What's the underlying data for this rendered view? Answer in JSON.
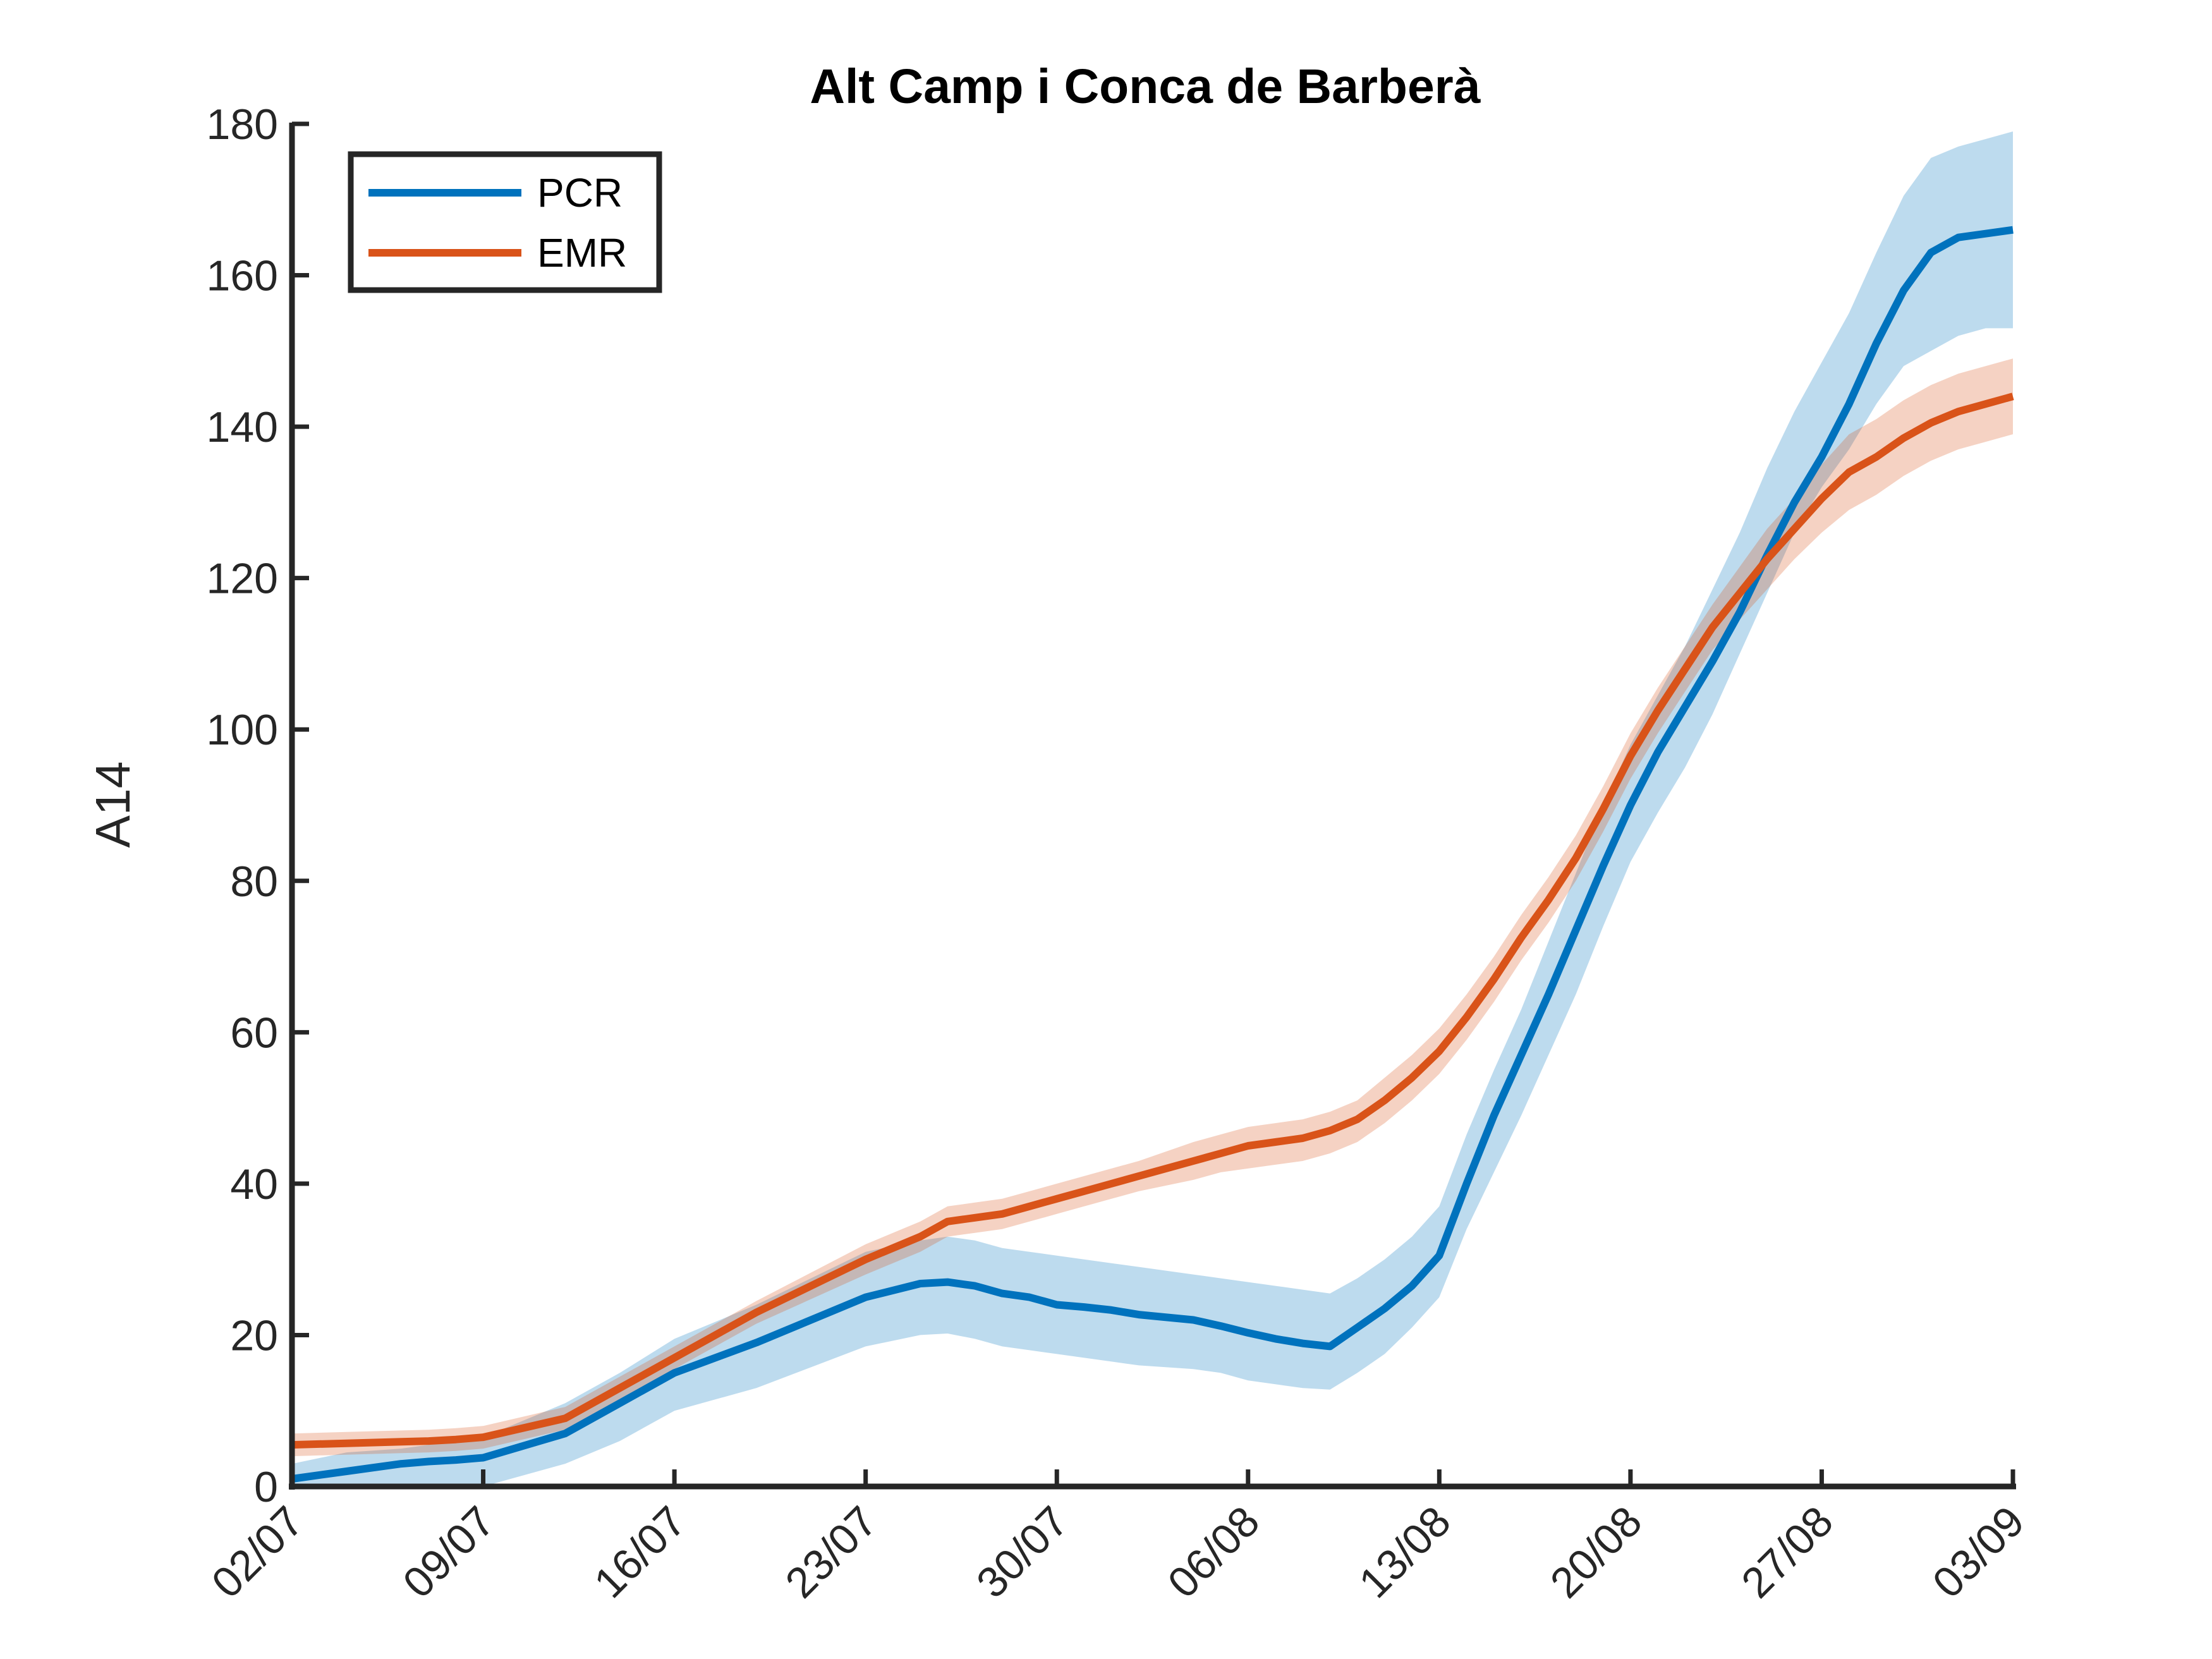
{
  "chart_data": {
    "type": "line",
    "title": "Alt Camp i Conca de Barberà",
    "xlabel": "",
    "ylabel": "A14",
    "x_ticks": [
      "02/07",
      "09/07",
      "16/07",
      "23/07",
      "30/07",
      "06/08",
      "13/08",
      "20/08",
      "27/08",
      "03/09"
    ],
    "x_range_days": [
      0,
      63
    ],
    "ylim": [
      0,
      180
    ],
    "y_ticks": [
      0,
      20,
      40,
      60,
      80,
      100,
      120,
      140,
      160,
      180
    ],
    "grid": false,
    "legend": "top-left",
    "colors": {
      "PCR": "#0072BD",
      "EMR": "#D95319"
    },
    "series": [
      {
        "name": "PCR",
        "x": [
          0,
          2,
          4,
          5,
          6,
          7,
          10,
          12,
          14,
          17,
          21,
          23,
          24,
          25,
          26,
          27,
          28,
          29,
          30,
          31,
          33,
          34,
          35,
          36,
          37,
          38,
          39,
          40,
          41,
          42,
          43,
          44,
          45,
          46,
          47,
          48,
          49,
          50,
          51,
          52,
          53,
          54,
          55,
          56,
          57,
          58,
          59,
          60,
          61,
          62,
          63
        ],
        "values": [
          1,
          2,
          3,
          3.3,
          3.5,
          3.8,
          7,
          11,
          15,
          19,
          25,
          26.8,
          27,
          26.5,
          25.5,
          25,
          24,
          23.7,
          23.3,
          22.7,
          22,
          21.2,
          20.3,
          19.5,
          18.9,
          18.5,
          21,
          23.5,
          26.5,
          30.5,
          40,
          49,
          57,
          65,
          73.5,
          82,
          90,
          97,
          103,
          109,
          115.5,
          123,
          130,
          136,
          143,
          151,
          158,
          163,
          165,
          165.5,
          166
        ],
        "lower": [
          0,
          0,
          0,
          0,
          0,
          0,
          3,
          6,
          10,
          13,
          18.5,
          20,
          20.2,
          19.5,
          18.5,
          18,
          17.5,
          17,
          16.5,
          16,
          15.5,
          15,
          14,
          13.5,
          13,
          12.8,
          15,
          17.5,
          21,
          25,
          34,
          41.5,
          49,
          57,
          65,
          74,
          82.5,
          89,
          95,
          102,
          110,
          118,
          126,
          132,
          137,
          143,
          148,
          150,
          152,
          153,
          153
        ],
        "upper": [
          3,
          4.5,
          5,
          5.5,
          6,
          6.5,
          11,
          15,
          19.5,
          24,
          31,
          32.5,
          33,
          32.5,
          31.5,
          31,
          30.5,
          30,
          29.5,
          29,
          28,
          27.5,
          27,
          26.5,
          26,
          25.5,
          27.5,
          30,
          33,
          37,
          46.5,
          55,
          63,
          72,
          81,
          90,
          98,
          104.5,
          111,
          118.5,
          126,
          134.5,
          142,
          148.5,
          155,
          163,
          170.5,
          175.5,
          177,
          178,
          179
        ]
      },
      {
        "name": "EMR",
        "x": [
          0,
          2,
          4,
          5,
          6,
          7,
          10,
          12,
          14,
          17,
          21,
          23,
          24,
          25,
          26,
          27,
          28,
          29,
          30,
          31,
          33,
          34,
          35,
          36,
          37,
          38,
          39,
          40,
          41,
          42,
          43,
          44,
          45,
          46,
          47,
          48,
          49,
          50,
          51,
          52,
          53,
          54,
          55,
          56,
          57,
          58,
          59,
          60,
          61,
          62,
          63
        ],
        "values": [
          5.5,
          5.7,
          5.9,
          6,
          6.2,
          6.5,
          9,
          13,
          17,
          23,
          30,
          33,
          35,
          35.5,
          36,
          37,
          38,
          39,
          40,
          41,
          43,
          44,
          45,
          45.5,
          46,
          47,
          48.5,
          51,
          54,
          57.5,
          62,
          67,
          72.5,
          77.5,
          83,
          89.5,
          96.5,
          102.5,
          108,
          113.5,
          118,
          122.5,
          126.5,
          130.5,
          134,
          136,
          138.5,
          140.5,
          142,
          143,
          144
        ],
        "lower": [
          4,
          4.2,
          4.4,
          4.5,
          4.7,
          5,
          7.5,
          11.5,
          15.5,
          21.5,
          28,
          31,
          33,
          33.5,
          34,
          35,
          36,
          37,
          38,
          39,
          40.5,
          41.5,
          42,
          42.5,
          43,
          44,
          45.5,
          48,
          51,
          54.5,
          59,
          64,
          69.5,
          74.5,
          80,
          86.5,
          93.5,
          99.5,
          105,
          110.5,
          114.5,
          118.5,
          122.5,
          126,
          129,
          131,
          133.5,
          135.5,
          137,
          138,
          139
        ],
        "upper": [
          7,
          7.2,
          7.4,
          7.5,
          7.7,
          8,
          10.5,
          14.5,
          18.5,
          24.5,
          32,
          35,
          37,
          37.5,
          38,
          39,
          40,
          41,
          42,
          43,
          45.5,
          46.5,
          47.5,
          48,
          48.5,
          49.5,
          51,
          54,
          57,
          60.5,
          65,
          70,
          75.5,
          80.5,
          86,
          92.5,
          99.5,
          105.5,
          111,
          116.5,
          121.5,
          126.5,
          130.5,
          135,
          139,
          141,
          143.5,
          145.5,
          147,
          148,
          149
        ]
      }
    ]
  }
}
